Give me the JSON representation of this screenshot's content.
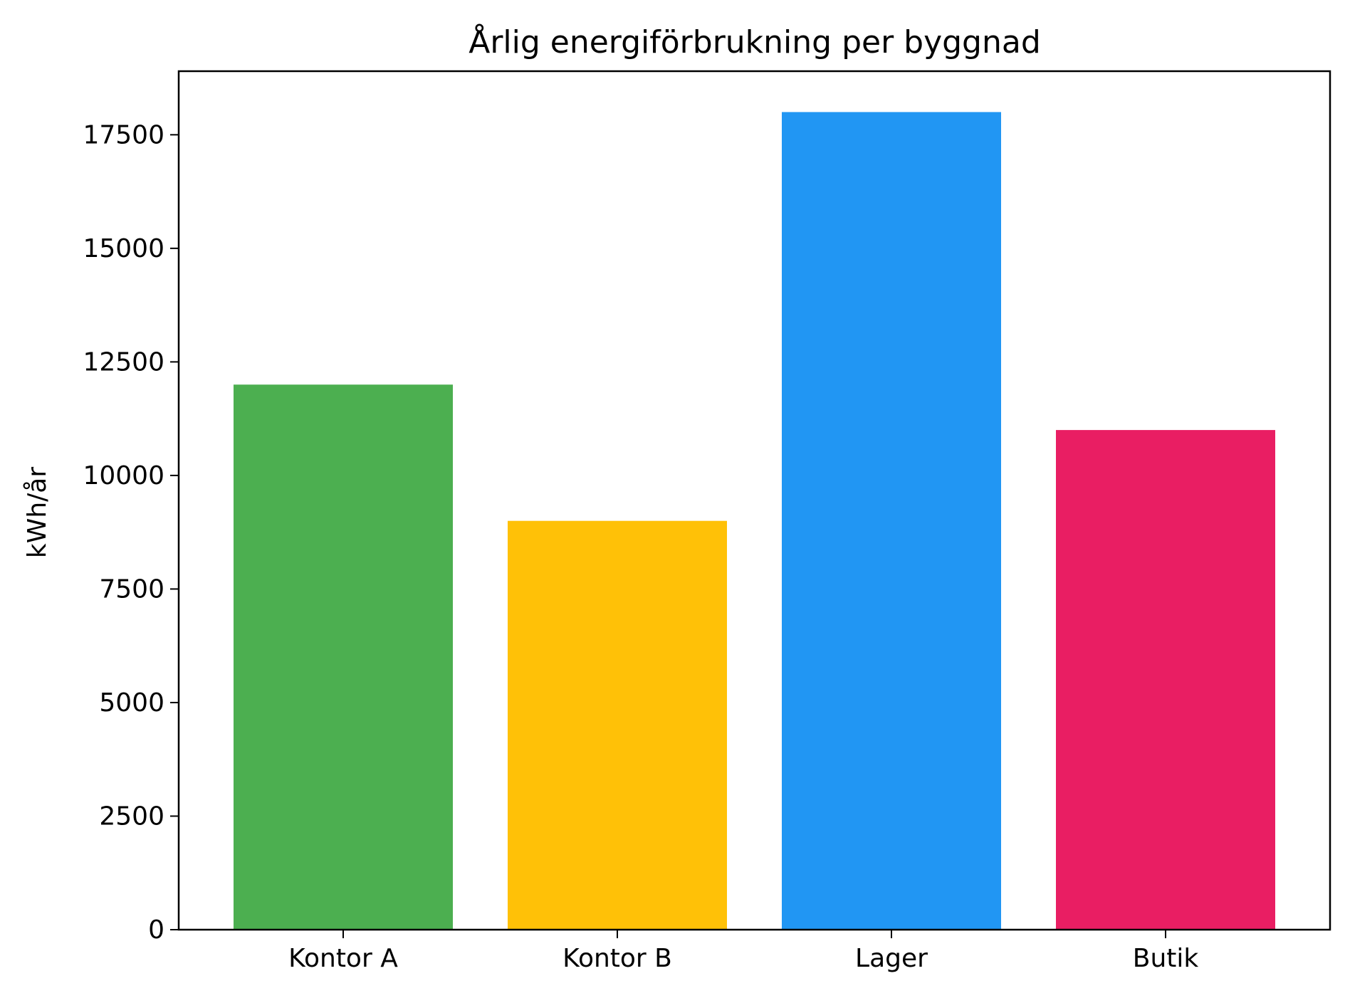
{
  "chart_data": {
    "type": "bar",
    "title": "Årlig energiförbrukning per byggnad",
    "xlabel": "",
    "ylabel": "kWh/år",
    "categories": [
      "Kontor A",
      "Kontor B",
      "Lager",
      "Butik"
    ],
    "values": [
      12000,
      9000,
      18000,
      11000
    ],
    "colors": [
      "#4caf50",
      "#ffc107",
      "#2196f3",
      "#e91e63"
    ],
    "ylim": [
      0,
      18900
    ],
    "yticks": [
      0,
      2500,
      5000,
      7500,
      10000,
      12500,
      15000,
      17500
    ],
    "grid": false,
    "legend": "none"
  }
}
